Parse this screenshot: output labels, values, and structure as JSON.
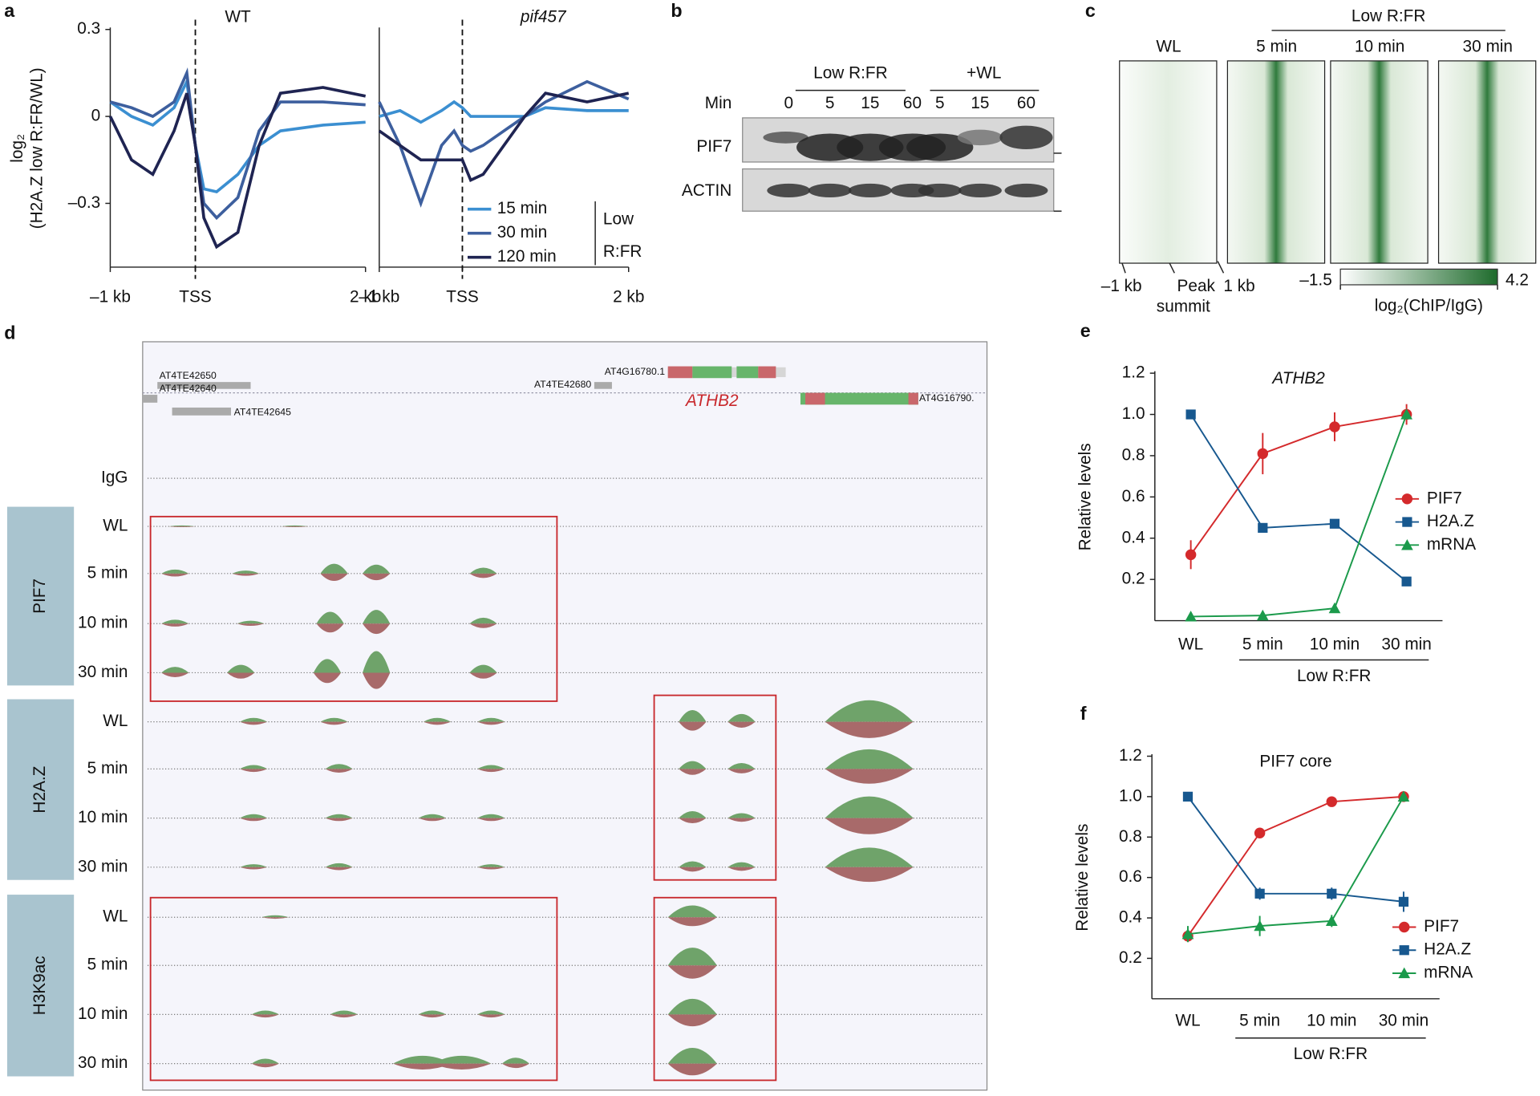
{
  "panel_labels": [
    "a",
    "b",
    "c",
    "d",
    "e",
    "f"
  ],
  "chart_data": [
    {
      "type": "line",
      "title": "WT",
      "x": [
        -1000,
        -750,
        -500,
        -250,
        -100,
        0,
        100,
        250,
        500,
        750,
        1000,
        1500,
        2000
      ],
      "xlim": [
        -1000,
        2000
      ],
      "xticks": [
        {
          "value": -1000,
          "label": "–1 kb"
        },
        {
          "value": 0,
          "label": "TSS"
        },
        {
          "value": 2000,
          "label": "2 kb"
        }
      ],
      "ylim": [
        -0.52,
        0.3
      ],
      "yticks": [
        0.3,
        {
          "value": 0,
          "label": "0"
        },
        {
          "value": -0.3,
          "label": "–0.3"
        }
      ],
      "y_label": [
        "log₂",
        "(H2A.Z low R:FR/WL)"
      ],
      "series": [
        {
          "color": "#3b8fd1",
          "values": [
            0.05,
            0.0,
            -0.03,
            0.03,
            0.12,
            -0.1,
            -0.25,
            -0.26,
            -0.2,
            -0.1,
            -0.05,
            -0.03,
            -0.02
          ]
        },
        {
          "color": "#3d5f9e",
          "values": [
            0.05,
            0.03,
            0.0,
            0.05,
            0.15,
            -0.1,
            -0.3,
            -0.35,
            -0.28,
            -0.05,
            0.05,
            0.05,
            0.04
          ]
        },
        {
          "color": "#1f2452",
          "values": [
            0.0,
            -0.15,
            -0.2,
            -0.05,
            0.08,
            -0.1,
            -0.35,
            -0.45,
            -0.4,
            -0.1,
            0.08,
            0.1,
            0.07
          ]
        }
      ]
    },
    {
      "type": "line",
      "title": "pif457",
      "title_italic": true,
      "x": [
        -1000,
        -750,
        -500,
        -250,
        -100,
        0,
        100,
        250,
        500,
        750,
        1000,
        1500,
        2000
      ],
      "xlim": [
        -1000,
        2000
      ],
      "xticks": [
        {
          "value": -1000,
          "label": "–1 kb"
        },
        {
          "value": 0,
          "label": "TSS"
        },
        {
          "value": 2000,
          "label": "2 kb"
        }
      ],
      "ylim": [
        -0.52,
        0.3
      ],
      "legend_title": [
        "Low",
        "R:FR"
      ],
      "series": [
        {
          "name": "15 min",
          "color": "#3b8fd1",
          "values": [
            0.0,
            0.02,
            -0.02,
            0.02,
            0.05,
            0.03,
            0.0,
            0.0,
            0.0,
            0.0,
            0.03,
            0.02,
            0.02
          ]
        },
        {
          "name": "30 min",
          "color": "#3d5f9e",
          "values": [
            0.05,
            -0.1,
            -0.3,
            -0.1,
            -0.05,
            -0.1,
            -0.12,
            -0.1,
            -0.05,
            0.0,
            0.05,
            0.12,
            0.06
          ]
        },
        {
          "name": "120 min",
          "color": "#1f2452",
          "values": [
            -0.05,
            -0.1,
            -0.15,
            -0.15,
            -0.15,
            -0.15,
            -0.22,
            -0.2,
            -0.1,
            0.0,
            0.08,
            0.05,
            0.08
          ]
        }
      ]
    },
    {
      "type": "line",
      "subtitle": "ATHB2",
      "subtitle_italic": true,
      "categories": [
        "WL",
        "5 min",
        "10 min",
        "30 min"
      ],
      "x_group_label": "Low R:FR",
      "ylim": [
        0,
        1.2
      ],
      "yticks": [
        0.2,
        0.4,
        0.6,
        0.8,
        {
          "value": 1,
          "label": "1.0"
        },
        1.2
      ],
      "y_label": "Relative levels",
      "series": [
        {
          "name": "PIF7",
          "color": "#d42a2c",
          "marker": "circle",
          "values": [
            0.32,
            0.81,
            0.94,
            1.0
          ],
          "errors": [
            0.07,
            0.1,
            0.07,
            0.05
          ]
        },
        {
          "name": "H2A.Z",
          "color": "#17588f",
          "marker": "square",
          "values": [
            1.0,
            0.45,
            0.47,
            0.19
          ],
          "errors": [
            null,
            null,
            null,
            null
          ]
        },
        {
          "name": "mRNA",
          "color": "#1b9a4b",
          "marker": "triangle",
          "values": [
            0.02,
            0.025,
            0.06,
            1.0
          ],
          "errors": [
            null,
            null,
            null,
            null
          ]
        }
      ]
    },
    {
      "type": "line",
      "subtitle": "PIF7 core",
      "categories": [
        "WL",
        "5 min",
        "10 min",
        "30 min"
      ],
      "x_group_label": "Low R:FR",
      "ylim": [
        0,
        1.2
      ],
      "yticks": [
        0.2,
        0.4,
        0.6,
        0.8,
        {
          "value": 1,
          "label": "1.0"
        },
        1.2
      ],
      "y_label": "Relative levels",
      "series": [
        {
          "name": "PIF7",
          "color": "#d42a2c",
          "marker": "circle",
          "values": [
            0.31,
            0.82,
            0.975,
            1.0
          ],
          "errors": [
            null,
            null,
            null,
            null
          ]
        },
        {
          "name": "H2A.Z",
          "color": "#17588f",
          "marker": "square",
          "values": [
            1.0,
            0.52,
            0.52,
            0.48
          ],
          "errors": [
            null,
            0.03,
            0.03,
            0.05
          ]
        },
        {
          "name": "mRNA",
          "color": "#1b9a4b",
          "marker": "triangle",
          "values": [
            0.32,
            0.36,
            0.385,
            1.0
          ],
          "errors": [
            0.04,
            0.05,
            0.03,
            null
          ]
        }
      ]
    }
  ],
  "blot": {
    "groups": [
      "Low R:FR",
      "+WL"
    ],
    "row_header": "Min",
    "lanes": [
      "0",
      "5",
      "15",
      "60",
      "5",
      "15",
      "60"
    ],
    "rows": [
      "PIF7",
      "ACTIN"
    ]
  },
  "heatmap": {
    "group_label": "Low R:FR",
    "panels": [
      "WL",
      "5 min",
      "10 min",
      "30 min"
    ],
    "x_left": "–1 kb",
    "x_center": [
      "Peak",
      "summit"
    ],
    "x_right": "1 kb",
    "colorbar": {
      "min": {
        "value": -1.5,
        "label": "–1.5"
      },
      "max": 4.2,
      "label": "log₂(ChIP/IgG)"
    }
  },
  "browser": {
    "genes": [
      "AT4TE42650",
      "AT4TE42640",
      "AT4TE42645",
      "AT4TE42680",
      "AT4G16780.1",
      "ATHB2",
      "AT4G16790."
    ],
    "control": "IgG",
    "groups": [
      {
        "name": "PIF7",
        "tracks": [
          "WL",
          "5 min",
          "10 min",
          "30 min"
        ]
      },
      {
        "name": "H2A.Z",
        "tracks": [
          "WL",
          "5 min",
          "10 min",
          "30 min"
        ]
      },
      {
        "name": "H3K9ac",
        "tracks": [
          "WL",
          "5 min",
          "10 min",
          "30 min"
        ]
      }
    ]
  }
}
